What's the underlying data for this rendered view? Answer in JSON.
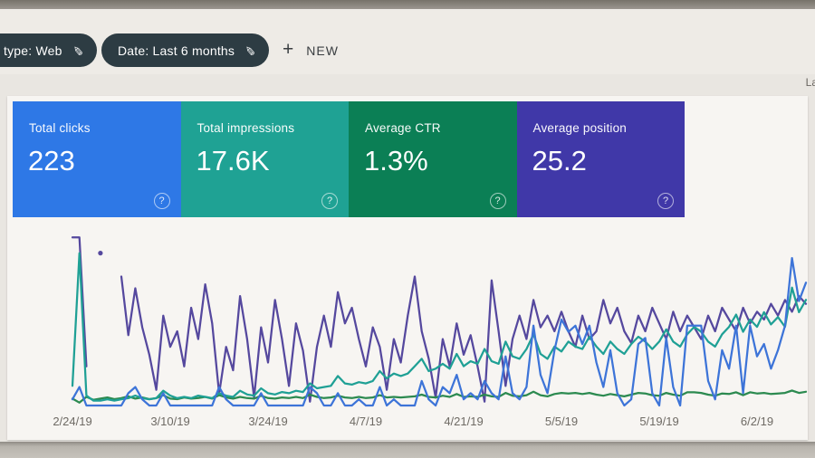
{
  "filter_bar": {
    "chips": [
      {
        "label": "type: Web",
        "icon": "pencil-icon"
      },
      {
        "label": "Date: Last 6 months",
        "icon": "pencil-icon"
      }
    ],
    "new_button": {
      "label": "NEW",
      "icon": "plus-icon"
    },
    "right_text_cutoff": "La",
    "chip_color": "#2d3c43"
  },
  "metric_cards": [
    {
      "label": "Total clicks",
      "value": "223",
      "color": "#2e78e6",
      "help_icon": "?"
    },
    {
      "label": "Total impressions",
      "value": "17.6K",
      "color": "#1fa294",
      "help_icon": "?"
    },
    {
      "label": "Average CTR",
      "value": "1.3%",
      "color": "#0b7f55",
      "help_icon": "?"
    },
    {
      "label": "Average position",
      "value": "25.2",
      "color": "#4038a8",
      "help_icon": "?"
    }
  ],
  "chart_data": {
    "type": "line",
    "title": "",
    "xlabel": "",
    "ylabel": "",
    "grid": false,
    "legend": "none (colors match metric cards)",
    "num_points": 106,
    "x_start_date": "2/24/19",
    "x_tick_labels": [
      "2/24/19",
      "3/10/19",
      "3/24/19",
      "4/7/19",
      "4/21/19",
      "5/5/19",
      "5/19/19",
      "6/2/19"
    ],
    "x_tick_indices": [
      0,
      14,
      28,
      42,
      56,
      70,
      84,
      98
    ],
    "series": [
      {
        "name": "Clicks",
        "color": "#3d74d8",
        "vmin": 0,
        "vmax": 28,
        "inverted": false,
        "values": [
          1,
          3,
          0,
          0,
          0,
          0,
          0,
          0,
          2,
          3,
          1,
          0,
          0,
          2,
          0,
          0,
          0,
          0,
          0,
          0,
          0,
          3,
          1,
          0,
          0,
          0,
          0,
          2,
          0,
          0,
          0,
          0,
          0,
          0,
          3,
          2,
          0,
          0,
          2,
          0,
          0,
          1,
          0,
          0,
          3,
          0,
          1,
          0,
          0,
          0,
          4,
          1,
          0,
          3,
          2,
          5,
          1,
          2,
          1,
          4,
          2,
          1,
          8,
          2,
          1,
          3,
          13,
          5,
          2,
          9,
          14,
          12,
          13,
          10,
          13,
          7,
          3,
          9,
          2,
          0,
          1,
          10,
          11,
          2,
          0,
          11,
          3,
          0,
          13,
          13,
          13,
          4,
          1,
          9,
          6,
          13,
          2,
          13,
          8,
          10,
          6,
          9,
          13,
          24,
          17,
          20
        ]
      },
      {
        "name": "Impressions",
        "color": "#1fa095",
        "vmin": 0,
        "vmax": 700,
        "inverted": false,
        "values": [
          80,
          620,
          40,
          20,
          20,
          25,
          20,
          25,
          30,
          40,
          30,
          25,
          30,
          60,
          40,
          30,
          35,
          30,
          40,
          35,
          30,
          50,
          40,
          35,
          60,
          45,
          40,
          70,
          50,
          45,
          55,
          50,
          60,
          55,
          90,
          70,
          75,
          80,
          120,
          90,
          85,
          95,
          90,
          100,
          140,
          110,
          130,
          120,
          130,
          160,
          190,
          140,
          150,
          170,
          150,
          210,
          160,
          180,
          170,
          230,
          180,
          170,
          260,
          200,
          190,
          230,
          290,
          210,
          190,
          240,
          220,
          260,
          240,
          230,
          280,
          240,
          210,
          260,
          230,
          210,
          250,
          280,
          260,
          230,
          260,
          310,
          260,
          240,
          290,
          320,
          300,
          260,
          240,
          290,
          320,
          370,
          300,
          350,
          320,
          380,
          330,
          360,
          320,
          480,
          380,
          430
        ]
      },
      {
        "name": "CTR_percent",
        "color": "#2c8a50",
        "vmin": 0,
        "vmax": 30,
        "inverted": false,
        "values": [
          1.2,
          0.5,
          1.5,
          1.0,
          1.2,
          1.4,
          1.1,
          1.3,
          1.6,
          1.2,
          1.4,
          1.1,
          1.3,
          1.8,
          1.2,
          1.1,
          1.4,
          1.2,
          1.3,
          1.5,
          1.2,
          1.8,
          1.4,
          1.2,
          1.5,
          1.3,
          1.2,
          1.7,
          1.3,
          1.2,
          1.4,
          1.3,
          1.5,
          1.3,
          1.9,
          1.5,
          1.3,
          1.4,
          1.7,
          1.4,
          1.3,
          1.5,
          1.3,
          1.4,
          1.8,
          1.4,
          1.5,
          1.4,
          1.5,
          1.6,
          1.9,
          1.5,
          1.4,
          1.7,
          1.5,
          2.0,
          1.5,
          1.6,
          1.5,
          1.9,
          1.6,
          1.5,
          2.2,
          1.7,
          1.6,
          1.8,
          2.4,
          1.8,
          1.6,
          2.0,
          2.2,
          2.1,
          2.2,
          2.0,
          2.2,
          1.9,
          1.7,
          2.0,
          1.8,
          1.6,
          1.9,
          2.2,
          2.1,
          1.8,
          1.7,
          2.2,
          1.9,
          1.7,
          2.3,
          2.3,
          2.2,
          1.9,
          1.7,
          2.1,
          2.0,
          2.3,
          1.8,
          2.3,
          2.1,
          2.2,
          2.0,
          2.1,
          2.2,
          2.6,
          2.2,
          2.4
        ]
      },
      {
        "name": "Position",
        "color": "#55489e",
        "vmin": 1,
        "vmax": 45,
        "inverted": true,
        "values": [
          2,
          2,
          35,
          null,
          6,
          null,
          null,
          12,
          27,
          15,
          25,
          32,
          41,
          22,
          30,
          26,
          35,
          20,
          28,
          14,
          24,
          42,
          30,
          36,
          17,
          28,
          43,
          25,
          34,
          18,
          28,
          40,
          24,
          31,
          44,
          30,
          22,
          30,
          16,
          24,
          20,
          28,
          35,
          25,
          30,
          41,
          28,
          34,
          22,
          12,
          26,
          33,
          43,
          28,
          35,
          24,
          32,
          27,
          35,
          44,
          13,
          26,
          40,
          28,
          22,
          28,
          18,
          25,
          22,
          26,
          21,
          26,
          30,
          22,
          28,
          26,
          18,
          24,
          20,
          26,
          29,
          22,
          26,
          20,
          24,
          28,
          21,
          26,
          22,
          25,
          28,
          22,
          26,
          20,
          23,
          26,
          20,
          24,
          21,
          23,
          19,
          22,
          18,
          21,
          17,
          19
        ]
      }
    ]
  }
}
